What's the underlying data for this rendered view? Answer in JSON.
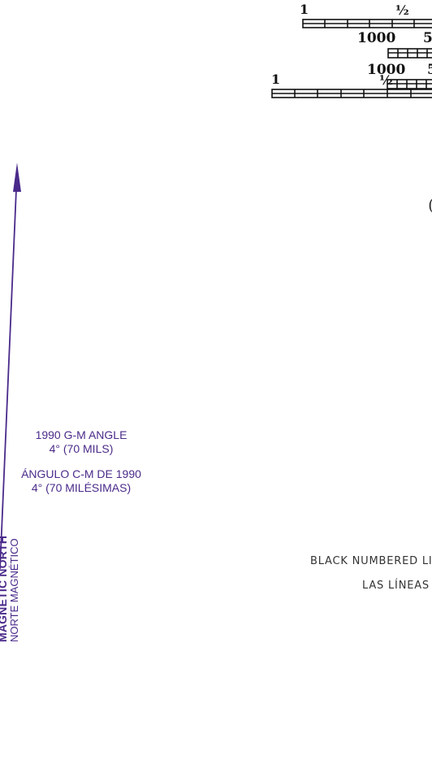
{
  "scale_bars": {
    "row1": {
      "left_label": "1",
      "mid_label": "½"
    },
    "row2": {
      "left_label": "1000",
      "mid_label": "5"
    },
    "row3": {
      "left_label": "1000",
      "mid_label": "5"
    },
    "row4": {
      "left_label": "1",
      "mid_label": "½"
    }
  },
  "declination": {
    "angle_en_line1": "1990 G-M ANGLE",
    "angle_en_line2": "4° (70 MILS)",
    "angle_es_line1": "ÁNGULO C-M DE 1990",
    "angle_es_line2": "4° (70 MILÉSIMAS)",
    "magnetic_north_en": "MAGNETIC NORTH",
    "magnetic_north_es": "NORTE MAGNÉTICO",
    "arrow_color": "#4a2a8a"
  },
  "notes": {
    "line1": "BLACK NUMBERED LI",
    "line2": "LAS LÍNEAS"
  },
  "partial_glyph": "("
}
